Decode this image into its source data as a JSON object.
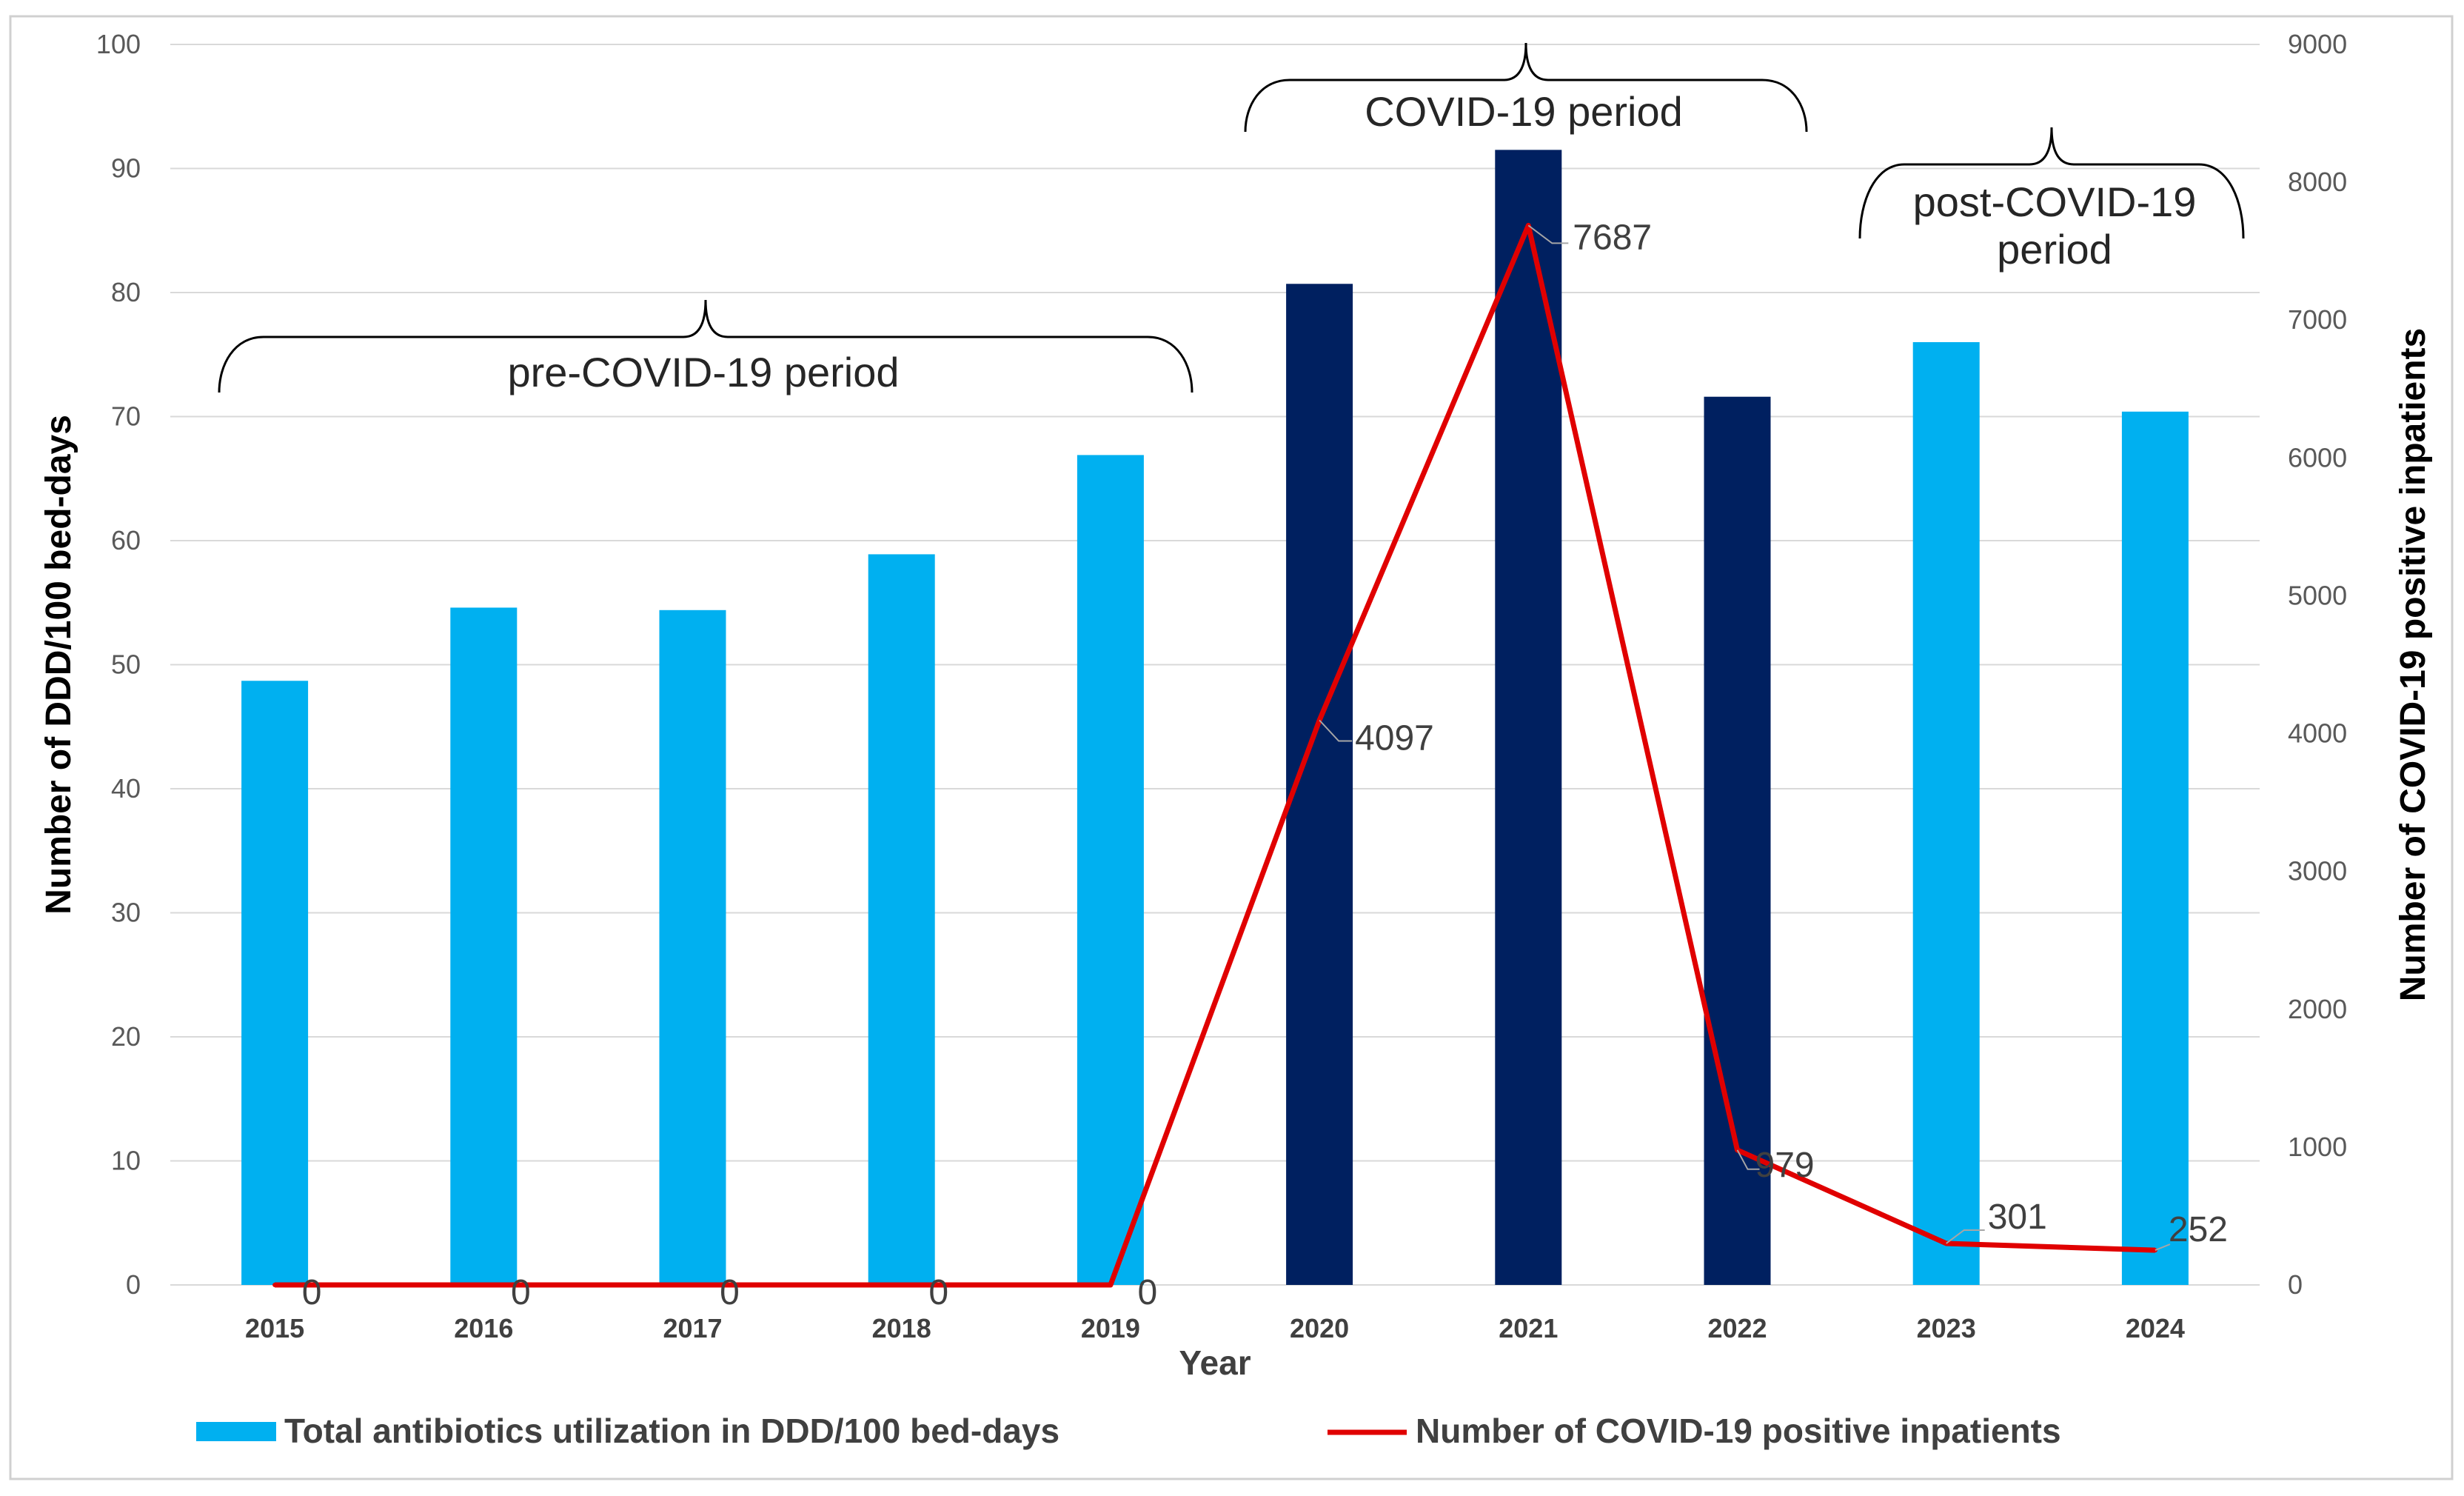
{
  "chart_data": {
    "type": "bar",
    "categories": [
      "2015",
      "2016",
      "2017",
      "2018",
      "2019",
      "2020",
      "2021",
      "2022",
      "2023",
      "2024"
    ],
    "xlabel": "Year",
    "ylabel": "Number of DDD/100 bed-days",
    "y2label": "Number of COVID-19 positive inpatients",
    "ylim": [
      0,
      100
    ],
    "y2lim": [
      0,
      9000
    ],
    "yticks": [
      0,
      10,
      20,
      30,
      40,
      50,
      60,
      70,
      80,
      90,
      100
    ],
    "y2ticks": [
      0,
      1000,
      2000,
      3000,
      4000,
      5000,
      6000,
      7000,
      8000,
      9000
    ],
    "grid": true,
    "series": [
      {
        "name": "Total antibiotics utilization in DDD/100 bed-days",
        "kind": "bar",
        "axis": "left",
        "values": [
          48.7,
          54.6,
          54.4,
          58.9,
          66.9,
          80.7,
          91.5,
          71.6,
          76.0,
          70.4
        ],
        "colors": [
          "#00B0F0",
          "#00B0F0",
          "#00B0F0",
          "#00B0F0",
          "#00B0F0",
          "#002060",
          "#002060",
          "#002060",
          "#00B0F0",
          "#00B0F0"
        ]
      },
      {
        "name": "Number of COVID-19 positive inpatients",
        "kind": "line",
        "axis": "right",
        "color": "#E00000",
        "values": [
          0,
          0,
          0,
          0,
          0,
          4097,
          7687,
          979,
          301,
          252
        ],
        "data_labels": [
          "0",
          "0",
          "0",
          "0",
          "0",
          "4097",
          "7687",
          "979",
          "301",
          "252"
        ]
      }
    ],
    "annotations": [
      {
        "text": "pre-COVID-19 period",
        "from": "2015",
        "to": "2019"
      },
      {
        "text": "COVID-19 period",
        "from": "2020",
        "to": "2022"
      },
      {
        "text": "post-COVID-19 period",
        "from": "2023",
        "to": "2024"
      }
    ],
    "legend": "bottom",
    "colors": {
      "bar_light": "#00B0F0",
      "bar_dark": "#002060",
      "line": "#E00000",
      "grid": "#D9D9D9"
    }
  }
}
